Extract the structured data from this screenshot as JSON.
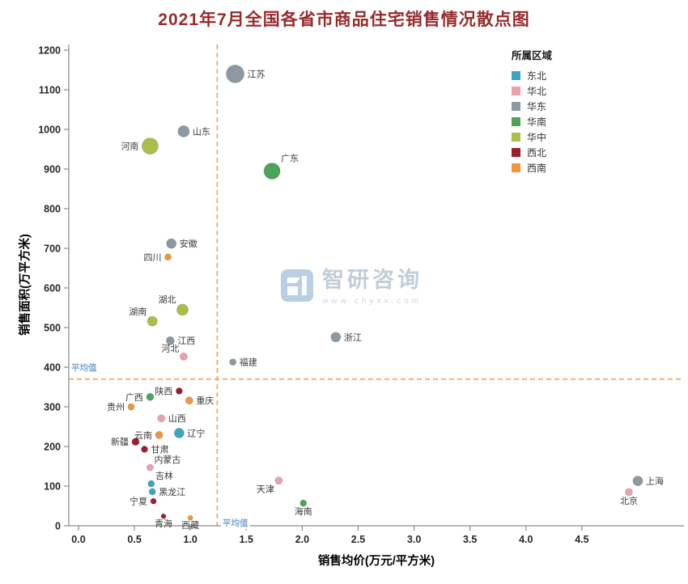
{
  "title": "2021年7月全国各省市商品住宅销售情况散点图",
  "watermark": {
    "brand": "智研咨询",
    "url": "www.chyxx.com"
  },
  "chart_data": {
    "type": "scatter",
    "title": "2021年7月全国各省市商品住宅销售情况散点图",
    "xlabel": "销售均价(万元/平方米)",
    "ylabel": "销售面积(万平方米)",
    "xlim": [
      0,
      5.4
    ],
    "ylim": [
      0,
      1200
    ],
    "grid": false,
    "x_ticks": [
      "0.0",
      "0.5",
      "1.0",
      "1.5",
      "2.0",
      "2.5",
      "3.0",
      "3.5",
      "4.0",
      "4.5"
    ],
    "y_ticks": [
      0,
      100,
      200,
      300,
      400,
      500,
      600,
      700,
      800,
      900,
      1000,
      1100,
      1200
    ],
    "legend": {
      "title": "所属区域",
      "position": "top-right",
      "items": [
        {
          "label": "东北",
          "color": "#3BA7BE"
        },
        {
          "label": "华北",
          "color": "#E8A2AE"
        },
        {
          "label": "华东",
          "color": "#8C99A4"
        },
        {
          "label": "华南",
          "color": "#4DA357"
        },
        {
          "label": "华中",
          "color": "#ABBE48"
        },
        {
          "label": "西北",
          "color": "#9C1F2E"
        },
        {
          "label": "西南",
          "color": "#F2953C"
        }
      ]
    },
    "averages": {
      "x": 1.24,
      "y": 370,
      "label": "平均值",
      "line_color": "#F5A054",
      "label_color": "#7EA8D3"
    },
    "points": [
      {
        "name": "江苏",
        "region": "华东",
        "x": 1.4,
        "y": 1140,
        "r": 11,
        "label_side": "right"
      },
      {
        "name": "山东",
        "region": "华东",
        "x": 0.94,
        "y": 995,
        "r": 7,
        "label_side": "right"
      },
      {
        "name": "河南",
        "region": "华中",
        "x": 0.64,
        "y": 958,
        "r": 10,
        "label_side": "left"
      },
      {
        "name": "广东",
        "region": "华南",
        "x": 1.73,
        "y": 895,
        "r": 10,
        "label_side": "top-right"
      },
      {
        "name": "安徽",
        "region": "华东",
        "x": 0.83,
        "y": 712,
        "r": 6,
        "label_side": "right"
      },
      {
        "name": "四川",
        "region": "西南",
        "x": 0.8,
        "y": 678,
        "r": 4,
        "label_side": "left"
      },
      {
        "name": "湖北",
        "region": "华中",
        "x": 0.93,
        "y": 545,
        "r": 7,
        "label_side": "top-left"
      },
      {
        "name": "湖南",
        "region": "华中",
        "x": 0.66,
        "y": 516,
        "r": 6,
        "label_side": "top-left"
      },
      {
        "name": "江西",
        "region": "华东",
        "x": 0.82,
        "y": 467,
        "r": 5,
        "label_side": "right"
      },
      {
        "name": "河北",
        "region": "华北",
        "x": 0.94,
        "y": 427,
        "r": 4.5,
        "label_side": "top-left"
      },
      {
        "name": "浙江",
        "region": "华东",
        "x": 2.3,
        "y": 476,
        "r": 6,
        "label_side": "right"
      },
      {
        "name": "福建",
        "region": "华东",
        "x": 1.38,
        "y": 413,
        "r": 4,
        "label_side": "right"
      },
      {
        "name": "陕西",
        "region": "西北",
        "x": 0.9,
        "y": 340,
        "r": 4,
        "label_side": "left"
      },
      {
        "name": "重庆",
        "region": "西南",
        "x": 0.99,
        "y": 316,
        "r": 4.5,
        "label_side": "right"
      },
      {
        "name": "贵州",
        "region": "西南",
        "x": 0.47,
        "y": 300,
        "r": 4,
        "label_side": "left"
      },
      {
        "name": "广西",
        "region": "华南",
        "x": 0.64,
        "y": 325,
        "r": 4.5,
        "label_side": "left"
      },
      {
        "name": "山西",
        "region": "华北",
        "x": 0.74,
        "y": 271,
        "r": 4.5,
        "label_side": "right"
      },
      {
        "name": "辽宁",
        "region": "东北",
        "x": 0.9,
        "y": 234,
        "r": 6,
        "label_side": "right"
      },
      {
        "name": "云南",
        "region": "西南",
        "x": 0.72,
        "y": 229,
        "r": 4.5,
        "label_side": "left"
      },
      {
        "name": "新疆",
        "region": "西北",
        "x": 0.51,
        "y": 212,
        "r": 4.5,
        "label_side": "left"
      },
      {
        "name": "甘肃",
        "region": "西北",
        "x": 0.59,
        "y": 193,
        "r": 4,
        "label_side": "right"
      },
      {
        "name": "内蒙古",
        "region": "华北",
        "x": 0.64,
        "y": 147,
        "r": 4,
        "label_side": "top-right"
      },
      {
        "name": "吉林",
        "region": "东北",
        "x": 0.65,
        "y": 106,
        "r": 4,
        "label_side": "top-right"
      },
      {
        "name": "黑龙江",
        "region": "东北",
        "x": 0.66,
        "y": 86,
        "r": 4,
        "label_side": "right"
      },
      {
        "name": "宁夏",
        "region": "西北",
        "x": 0.67,
        "y": 62,
        "r": 3.5,
        "label_side": "left"
      },
      {
        "name": "青海",
        "region": "西北",
        "x": 0.76,
        "y": 24,
        "r": 3,
        "label_side": "bottom"
      },
      {
        "name": "西藏",
        "region": "西南",
        "x": 1.0,
        "y": 20,
        "r": 3,
        "label_side": "bottom"
      },
      {
        "name": "天津",
        "region": "华北",
        "x": 1.79,
        "y": 114,
        "r": 4.5,
        "label_side": "bottom-left"
      },
      {
        "name": "海南",
        "region": "华南",
        "x": 2.01,
        "y": 57,
        "r": 4,
        "label_side": "bottom"
      },
      {
        "name": "上海",
        "region": "华东",
        "x": 5.0,
        "y": 113,
        "r": 6,
        "label_side": "right"
      },
      {
        "name": "北京",
        "region": "华北",
        "x": 4.92,
        "y": 85,
        "r": 4.5,
        "label_side": "bottom"
      }
    ]
  }
}
